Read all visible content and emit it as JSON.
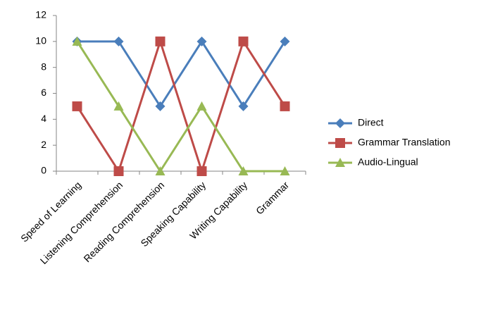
{
  "chart_data": {
    "type": "line",
    "categories": [
      "Speed of Learning",
      "Listening Comprehension",
      "Reading Comprehension",
      "Speaking Capability",
      "Writing Capability",
      "Grammar"
    ],
    "series": [
      {
        "name": "Direct",
        "color": "#4a7ebb",
        "marker": "diamond",
        "values": [
          10,
          10,
          5,
          10,
          5,
          10
        ]
      },
      {
        "name": "Grammar Translation",
        "color": "#be4b48",
        "marker": "square",
        "values": [
          5,
          0,
          10,
          0,
          10,
          5
        ]
      },
      {
        "name": "Audio-Lingual",
        "color": "#98b954",
        "marker": "triangle",
        "values": [
          10,
          5,
          0,
          5,
          0,
          0
        ]
      }
    ],
    "ylim": [
      0,
      12
    ],
    "yticks": [
      0,
      2,
      4,
      6,
      8,
      10,
      12
    ],
    "grid": false,
    "legend": "right"
  }
}
